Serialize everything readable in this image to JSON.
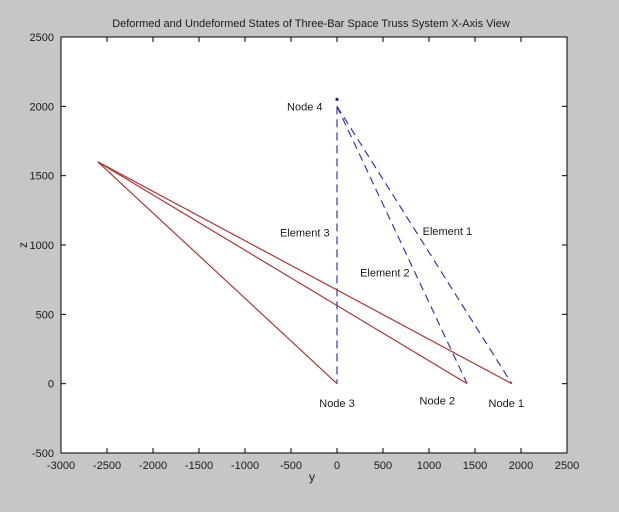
{
  "figure": {
    "background": "#c6c6c6"
  },
  "chart_data": {
    "type": "line",
    "title": "Deformed and Undeformed States of Three-Bar Space Truss System X-Axis View",
    "xlabel": "y",
    "ylabel": "z",
    "xlim": [
      -3000,
      2500
    ],
    "ylim": [
      -500,
      2500
    ],
    "xticks": [
      -3000,
      -2500,
      -2000,
      -1500,
      -1000,
      -500,
      0,
      500,
      1000,
      1500,
      2000,
      2500
    ],
    "yticks": [
      -500,
      0,
      500,
      1000,
      1500,
      2000,
      2500
    ],
    "grid": false,
    "legend": "none",
    "plot_bg_color": "#ffffff",
    "axis_color": "#000000",
    "undeformed_color": "#3838a8",
    "deformed_color": "#a83838",
    "nodes": {
      "node1": [
        1900,
        0
      ],
      "node2": [
        1414,
        0
      ],
      "node3": [
        0,
        0
      ],
      "node4": [
        0,
        2000
      ],
      "node4_deformed": [
        -2600,
        1600
      ]
    },
    "series": [
      {
        "name": "undeformed-truss",
        "state": "undeformed",
        "color": "#3838a8",
        "dash": true,
        "segments": [
          {
            "element": "element-1",
            "from": [
              0,
              2000
            ],
            "to": [
              1900,
              0
            ]
          },
          {
            "element": "element-2",
            "from": [
              0,
              2000
            ],
            "to": [
              1414,
              0
            ]
          },
          {
            "element": "element-3",
            "from": [
              0,
              2000
            ],
            "to": [
              0,
              0
            ]
          }
        ]
      },
      {
        "name": "deformed-truss",
        "state": "deformed",
        "color": "#a83838",
        "dash": false,
        "segments": [
          {
            "element": "element-1-deformed",
            "from": [
              -2600,
              1600
            ],
            "to": [
              1900,
              0
            ]
          },
          {
            "element": "element-2-deformed",
            "from": [
              -2600,
              1600
            ],
            "to": [
              1414,
              0
            ]
          },
          {
            "element": "element-3-deformed",
            "from": [
              -2600,
              1600
            ],
            "to": [
              0,
              0
            ]
          }
        ]
      }
    ],
    "marker": {
      "id": "node-4-marker",
      "pos": [
        0,
        2050
      ],
      "color": "#20206a"
    },
    "annotations": [
      {
        "id": "node-4-label",
        "text": "Node 4",
        "pos": [
          -350,
          2000
        ]
      },
      {
        "id": "node-3-label",
        "text": "Node 3",
        "pos": [
          0,
          -140
        ]
      },
      {
        "id": "node-2-label",
        "text": "Node 2",
        "pos": [
          1090,
          -120
        ]
      },
      {
        "id": "node-1-label",
        "text": "Node 1",
        "pos": [
          1840,
          -140
        ]
      },
      {
        "id": "element-1-label",
        "text": "Element 1",
        "pos": [
          1200,
          1100
        ]
      },
      {
        "id": "element-2-label",
        "text": "Element 2",
        "pos": [
          520,
          800
        ]
      },
      {
        "id": "element-3-label",
        "text": "Element 3",
        "pos": [
          -350,
          1090
        ]
      }
    ]
  }
}
